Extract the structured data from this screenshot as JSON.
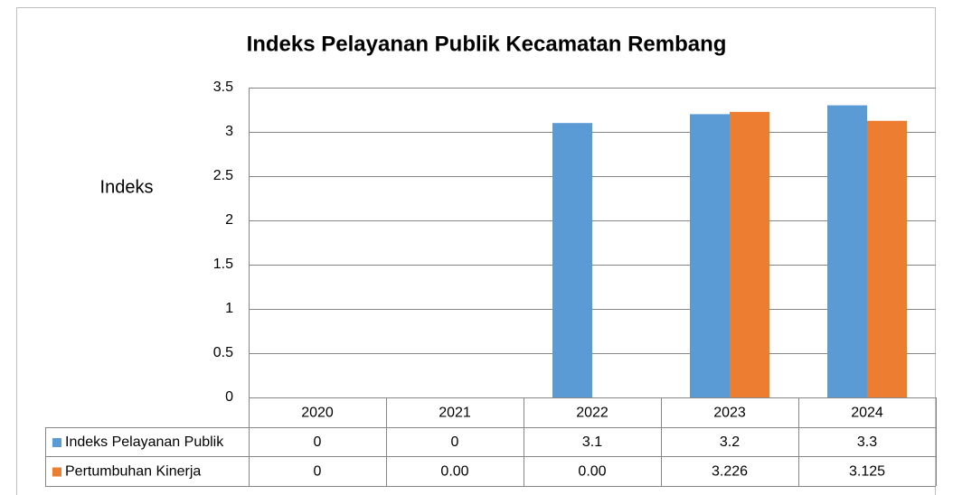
{
  "chart_data": {
    "type": "bar",
    "title": "Indeks Pelayanan Publik Kecamatan Rembang",
    "y_label": "Indeks",
    "categories": [
      "2020",
      "2021",
      "2022",
      "2023",
      "2024"
    ],
    "series": [
      {
        "name": "Indeks Pelayanan Publik",
        "color": "#5b9bd5",
        "values": [
          0,
          0,
          3.1,
          3.2,
          3.3
        ]
      },
      {
        "name": "Pertumbuhan Kinerja",
        "color": "#ed7d31",
        "values": [
          0,
          0,
          0,
          3.226,
          3.125
        ],
        "value_labels": [
          "0",
          "0.00",
          "0.00",
          "3.226",
          "3.125"
        ]
      }
    ],
    "ylim": [
      0,
      3.5
    ],
    "yticks": [
      0,
      0.5,
      1,
      1.5,
      2,
      2.5,
      3,
      3.5
    ],
    "grid": true,
    "data_table": true
  }
}
